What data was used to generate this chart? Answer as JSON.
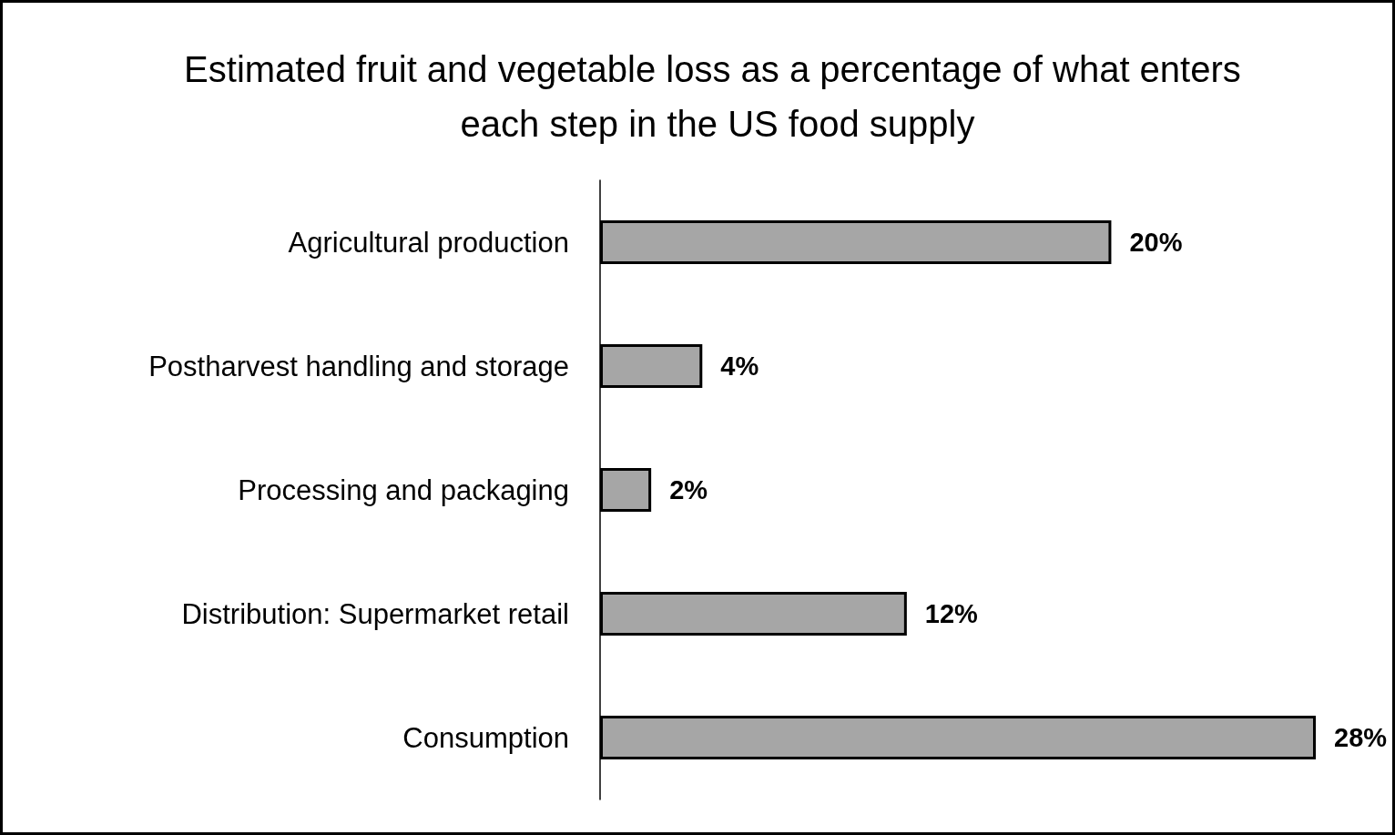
{
  "chart_data": {
    "type": "bar",
    "orientation": "horizontal",
    "title": "Estimated fruit and vegetable loss as a percentage of what enters each step in the US food supply",
    "categories": [
      "Agricultural production",
      "Postharvest handling and storage",
      "Processing and packaging",
      "Distribution: Supermarket retail",
      "Consumption"
    ],
    "values": [
      20,
      4,
      2,
      12,
      28
    ],
    "value_labels": [
      "20%",
      "4%",
      "2%",
      "12%",
      "28%"
    ],
    "color": "#a6a6a6"
  }
}
